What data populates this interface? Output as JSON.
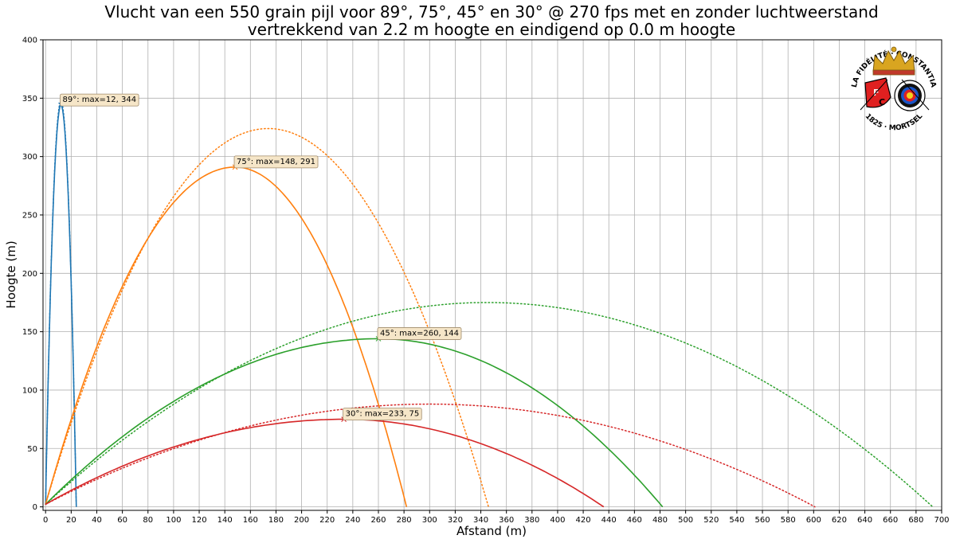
{
  "chart_data": {
    "type": "line",
    "title_line1": "Vlucht van een 550 grain pijl voor 89°, 75°, 45° en 30° @ 270 fps met en zonder luchtweerstand",
    "title_line2": "vertrekkend van 2.2 m hoogte en eindigend op 0.0 m hoogte",
    "xlabel": "Afstand (m)",
    "ylabel": "Hoogte (m)",
    "xlim": [
      -2,
      700
    ],
    "ylim": [
      -3,
      400
    ],
    "xticks": [
      0,
      20,
      40,
      60,
      80,
      100,
      120,
      140,
      160,
      180,
      200,
      220,
      240,
      260,
      280,
      300,
      320,
      340,
      360,
      380,
      400,
      420,
      440,
      460,
      480,
      500,
      520,
      540,
      560,
      580,
      600,
      620,
      640,
      660,
      680,
      700
    ],
    "yticks": [
      0,
      50,
      100,
      150,
      200,
      250,
      300,
      350,
      400
    ],
    "grid": true,
    "start_height": 2.2,
    "series": [
      {
        "angle": 89,
        "color": "#1f77b4",
        "with_drag": {
          "apex_x": 12,
          "apex_y": 344,
          "range": 24
        },
        "no_drag": {
          "apex_x": 12,
          "apex_y": 347,
          "range": 24
        },
        "annotation": "89°: max=12, 344"
      },
      {
        "angle": 75,
        "color": "#ff7f0e",
        "with_drag": {
          "apex_x": 148,
          "apex_y": 291,
          "range": 282
        },
        "no_drag": {
          "apex_x": 174,
          "apex_y": 324,
          "range": 346
        },
        "annotation": "75°: max=148, 291"
      },
      {
        "angle": 45,
        "color": "#2ca02c",
        "with_drag": {
          "apex_x": 260,
          "apex_y": 144,
          "range": 482
        },
        "no_drag": {
          "apex_x": 345,
          "apex_y": 175,
          "range": 693
        },
        "annotation": "45°: max=260, 144"
      },
      {
        "angle": 30,
        "color": "#d62728",
        "with_drag": {
          "apex_x": 233,
          "apex_y": 75,
          "range": 436
        },
        "no_drag": {
          "apex_x": 300,
          "apex_y": 88,
          "range": 601
        },
        "annotation": "30°: max=233, 75"
      }
    ]
  },
  "logo": {
    "top_text": "LA FIDÉLITÉ · CONSTANTIA",
    "bottom_text": "1825 · MORTSEL",
    "letters": [
      "F",
      "C"
    ],
    "colors": {
      "red": "#e02020",
      "gold": "#d9a520",
      "blue": "#1a56c8",
      "black": "#111111",
      "white": "#ffffff"
    }
  }
}
